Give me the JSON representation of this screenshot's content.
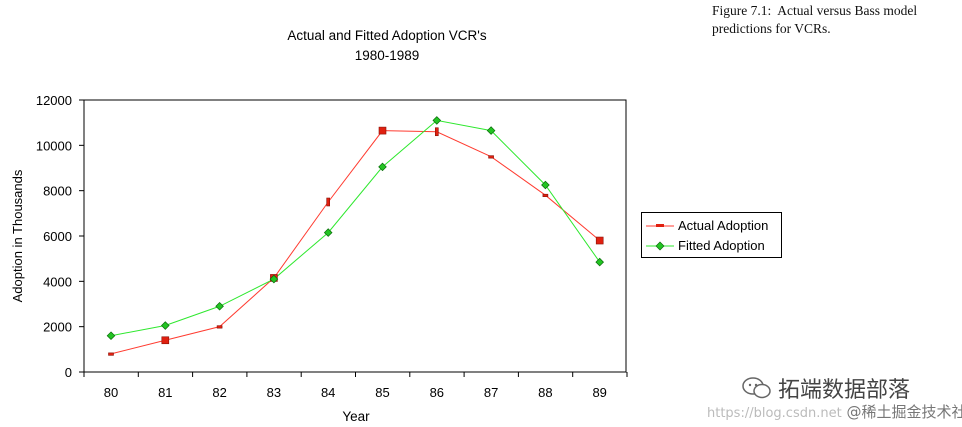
{
  "caption": {
    "label": "Figure 7.1:",
    "text": "Actual versus Bass model predictions for VCRs."
  },
  "chart_data": {
    "type": "line",
    "title": "Actual and Fitted Adoption VCR's",
    "subtitle": "1980-1989",
    "xlabel": "Year",
    "ylabel": "Adoption in Thousands",
    "categories": [
      "80",
      "81",
      "82",
      "83",
      "84",
      "85",
      "86",
      "87",
      "88",
      "89"
    ],
    "ylim": [
      0,
      12000
    ],
    "yticks": [
      0,
      2000,
      4000,
      6000,
      8000,
      10000,
      12000
    ],
    "ytick_labels": [
      "0",
      "2000",
      "4000",
      "6000",
      "8000",
      "10000",
      "12000"
    ],
    "grid": false,
    "legend_position": "right",
    "series": [
      {
        "name": "Actual Adoption",
        "color": "#ff3b30",
        "marker_color": "#e02010",
        "values": [
          800,
          1400,
          2000,
          4150,
          7500,
          10650,
          10600,
          9500,
          7800,
          5800
        ]
      },
      {
        "name": "Fitted Adoption",
        "color": "#2ee82e",
        "marker_color": "#22c422",
        "values": [
          1600,
          2050,
          2900,
          4100,
          6150,
          9050,
          11100,
          10650,
          8250,
          4850
        ]
      }
    ]
  },
  "watermark": {
    "brand": "拓端数据部落",
    "url": "https://blog.csdn.net",
    "site": "@稀土掘金技术社区"
  }
}
